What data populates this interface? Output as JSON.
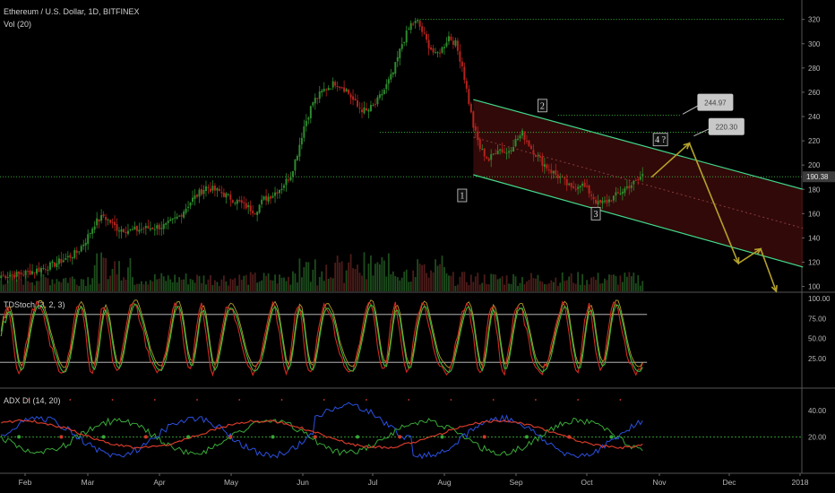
{
  "header": {
    "symbol_title": "Ethereum / U.S. Dollar, 1D, BITFINEX",
    "volume_label": "Vol (20)"
  },
  "panes": {
    "stoch_label": "TDStoch (3, 2, 3)",
    "adx_label": "ADX DI (14, 20)"
  },
  "chart_data": [
    {
      "type": "candlestick",
      "title": "Ethereum / U.S. Dollar, 1D, BITFINEX",
      "y_ticks": [
        100,
        120,
        140,
        160,
        180,
        200,
        220,
        240,
        260,
        280,
        300,
        320
      ],
      "ylim": [
        96,
        336
      ],
      "x_ticks": [
        "Feb",
        "Mar",
        "Apr",
        "May",
        "Jun",
        "Jul",
        "Aug",
        "Sep",
        "Oct",
        "Nov",
        "Dec",
        "2018"
      ],
      "last_price": "190.38",
      "last_price_value": 190.38,
      "anchor_points": [
        [
          0,
          109
        ],
        [
          8,
          110
        ],
        [
          15,
          113
        ],
        [
          22,
          117
        ],
        [
          28,
          122
        ],
        [
          34,
          128
        ],
        [
          38,
          138
        ],
        [
          42,
          152
        ],
        [
          46,
          158
        ],
        [
          52,
          148
        ],
        [
          58,
          146
        ],
        [
          66,
          148
        ],
        [
          74,
          150
        ],
        [
          80,
          158
        ],
        [
          86,
          172
        ],
        [
          92,
          182
        ],
        [
          98,
          178
        ],
        [
          104,
          172
        ],
        [
          110,
          166
        ],
        [
          114,
          162
        ],
        [
          118,
          172
        ],
        [
          122,
          176
        ],
        [
          126,
          182
        ],
        [
          130,
          192
        ],
        [
          133,
          210
        ],
        [
          136,
          232
        ],
        [
          140,
          252
        ],
        [
          145,
          262
        ],
        [
          150,
          268
        ],
        [
          155,
          262
        ],
        [
          160,
          248
        ],
        [
          164,
          244
        ],
        [
          168,
          250
        ],
        [
          172,
          262
        ],
        [
          176,
          276
        ],
        [
          180,
          300
        ],
        [
          184,
          316
        ],
        [
          187,
          318
        ],
        [
          191,
          302
        ],
        [
          195,
          290
        ],
        [
          198,
          296
        ],
        [
          201,
          306
        ],
        [
          204,
          300
        ],
        [
          207,
          282
        ],
        [
          209,
          262
        ],
        [
          212,
          232
        ],
        [
          215,
          214
        ],
        [
          219,
          204
        ],
        [
          223,
          214
        ],
        [
          227,
          210
        ],
        [
          231,
          220
        ],
        [
          234,
          226
        ],
        [
          238,
          214
        ],
        [
          242,
          204
        ],
        [
          247,
          195
        ],
        [
          252,
          188
        ],
        [
          256,
          180
        ],
        [
          260,
          185
        ],
        [
          264,
          178
        ],
        [
          268,
          168
        ],
        [
          272,
          170
        ],
        [
          277,
          176
        ],
        [
          281,
          182
        ],
        [
          285,
          186
        ],
        [
          288,
          192
        ]
      ],
      "horizontal_levels": [
        320,
        227,
        241
      ],
      "channel": {
        "upper": [
          [
            212,
            254
          ],
          [
            360,
            180
          ]
        ],
        "lower": [
          [
            212,
            192
          ],
          [
            360,
            116
          ]
        ],
        "mid": [
          [
            212,
            223
          ],
          [
            360,
            148
          ]
        ]
      },
      "projection_path": [
        [
          292,
          190
        ],
        [
          309,
          218
        ],
        [
          331,
          119
        ],
        [
          341,
          131
        ],
        [
          348,
          96
        ]
      ],
      "wave_labels": [
        {
          "text": "1",
          "x": 207,
          "y": 175
        },
        {
          "text": "2",
          "x": 243,
          "y": 249
        },
        {
          "text": "3",
          "x": 267,
          "y": 160
        },
        {
          "text": "4 ?",
          "x": 296,
          "y": 221
        }
      ],
      "price_labels": [
        {
          "text": "244.97",
          "x": 313,
          "y": 258
        },
        {
          "text": "220.30",
          "x": 318,
          "y": 238
        }
      ]
    },
    {
      "type": "line",
      "title": "TDStoch (3, 2, 3)",
      "y_ticks": [
        "100.00",
        "75.00",
        "50.00",
        "25.00"
      ],
      "y_tick_values": [
        100,
        75,
        50,
        25
      ],
      "ylim": [
        0,
        100
      ],
      "levels": [
        20,
        80
      ]
    },
    {
      "type": "line",
      "title": "ADX DI (14, 20)",
      "y_ticks": [
        "40.00",
        "20.00"
      ],
      "y_tick_values": [
        40,
        20
      ],
      "ylim": [
        0,
        52
      ],
      "level": 20
    }
  ],
  "colors": {
    "background": "#000000",
    "up": "#2e8b2e",
    "down": "#b5231d",
    "volume_up": "#1d4d1d",
    "volume_down": "#4d1c1a",
    "channel_line": "#41d98a",
    "channel_fill": "#3a0a0a",
    "projection": "#b4a12a",
    "level_line": "#3fbf3f",
    "stoch_fast": "#d22a22",
    "stoch_slow": "#38b838",
    "stoch_signal": "#b59a2a",
    "adx": "#d33a2a",
    "di_plus": "#2a50e0",
    "di_minus": "#38a838",
    "price_tag": "#3c3c3c"
  }
}
